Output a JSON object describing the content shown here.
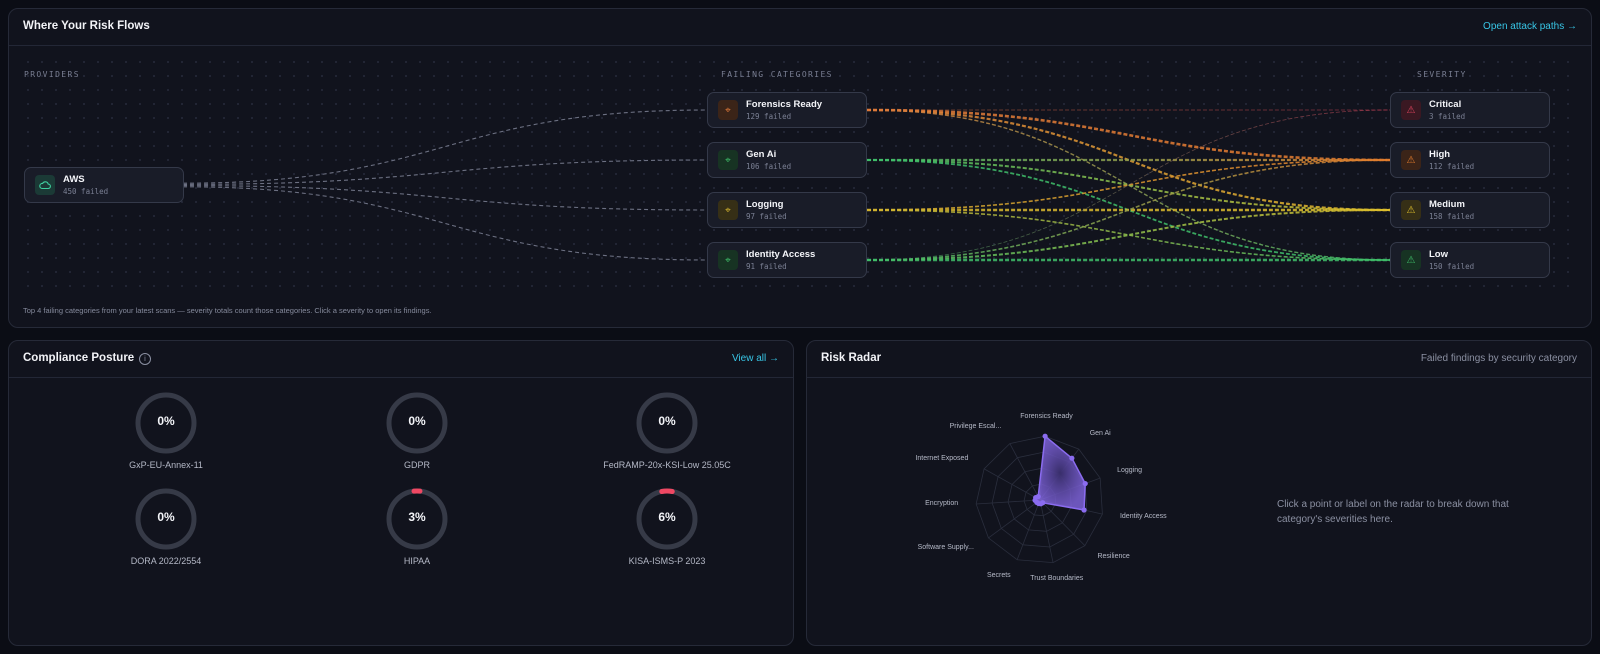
{
  "flows": {
    "title": "Where Your Risk Flows",
    "link": "Open attack paths →",
    "columns": {
      "providers": "PROVIDERS",
      "categories": "FAILING CATEGORIES",
      "severity": "SEVERITY"
    },
    "provider": {
      "name": "AWS",
      "count": "450 failed",
      "icon": "cloud-icon"
    },
    "categories": [
      {
        "name": "Forensics Ready",
        "count": "129 failed",
        "color": "#e07a3a"
      },
      {
        "name": "Gen Ai",
        "count": "106 failed",
        "color": "#3fbf6a"
      },
      {
        "name": "Logging",
        "count": "97 failed",
        "color": "#d6b62f"
      },
      {
        "name": "Identity Access",
        "count": "91 failed",
        "color": "#3fbf6a"
      }
    ],
    "severities": [
      {
        "name": "Critical",
        "count": "3 failed",
        "color": "#e0455f"
      },
      {
        "name": "High",
        "count": "112 failed",
        "color": "#e67e2e"
      },
      {
        "name": "Medium",
        "count": "158 failed",
        "color": "#e0c02d"
      },
      {
        "name": "Low",
        "count": "150 failed",
        "color": "#3fbf6a"
      }
    ],
    "footnote": "Top 4 failing categories from your latest scans — severity totals count those categories. Click a severity to open its findings."
  },
  "compliance": {
    "title": "Compliance Posture",
    "info_icon": "i",
    "link": "View all →",
    "track_color": "#363a47",
    "fill_color": "#ef4863",
    "frameworks": [
      {
        "name": "GxP-EU-Annex-11",
        "value": "0%",
        "percent": 0
      },
      {
        "name": "GDPR",
        "value": "0%",
        "percent": 0
      },
      {
        "name": "FedRAMP-20x-KSI-Low 25.05C",
        "value": "0%",
        "percent": 0
      },
      {
        "name": "DORA 2022/2554",
        "value": "0%",
        "percent": 0
      },
      {
        "name": "HIPAA",
        "value": "3%",
        "percent": 3
      },
      {
        "name": "KISA-ISMS-P 2023",
        "value": "6%",
        "percent": 6
      }
    ]
  },
  "radar": {
    "title": "Risk Radar",
    "subtitle": "Failed findings by security category",
    "hint": "Click a point or label on the radar to break down that category's severities here.",
    "accent": "#8b6cf0",
    "axes": [
      {
        "label": "Forensics Ready",
        "value": 129
      },
      {
        "label": "Gen Ai",
        "value": 106
      },
      {
        "label": "Logging",
        "value": 97
      },
      {
        "label": "Identity Access",
        "value": 91
      },
      {
        "label": "Resilience",
        "value": 0
      },
      {
        "label": "Trust Boundaries",
        "value": 0
      },
      {
        "label": "Secrets",
        "value": 0
      },
      {
        "label": "Software Supply...",
        "value": 8
      },
      {
        "label": "Encryption",
        "value": 10
      },
      {
        "label": "Internet Exposed",
        "value": 10
      },
      {
        "label": "Privilege Escal...",
        "value": 5
      }
    ],
    "max": 129
  }
}
